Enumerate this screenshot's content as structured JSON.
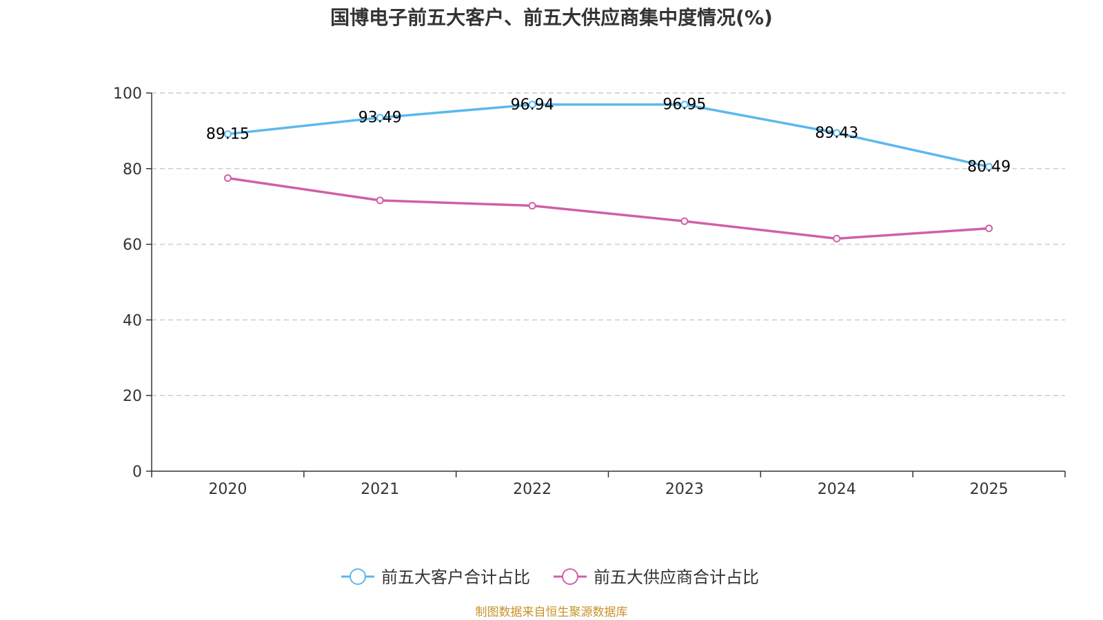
{
  "chart_data": {
    "type": "line",
    "title": "国博电子前五大客户、前五大供应商集中度情况(%)",
    "categories": [
      "2020",
      "2021",
      "2022",
      "2023",
      "2024",
      "2025"
    ],
    "ylim": [
      0,
      100
    ],
    "yticks": [
      0,
      20,
      40,
      60,
      80,
      100
    ],
    "grid": true,
    "legend_position": "bottom",
    "series": [
      {
        "name": "前五大客户合计占比",
        "color": "#5bb8ee",
        "values": [
          89.15,
          93.49,
          96.94,
          96.95,
          89.43,
          80.49
        ],
        "show_labels": true
      },
      {
        "name": "前五大供应商合计占比",
        "color": "#d15fa8",
        "values": [
          77.5,
          71.6,
          70.2,
          66.1,
          61.5,
          64.2
        ],
        "show_labels": false
      }
    ],
    "source": "制图数据来自恒生聚源数据库",
    "source_color": "#c8922a"
  }
}
